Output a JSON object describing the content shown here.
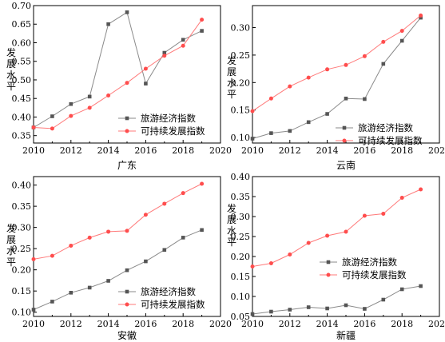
{
  "chart_data": [
    {
      "type": "line",
      "xlabel": "广东",
      "ylabel": "发展水平",
      "xlim": [
        2010,
        2020
      ],
      "ylim": [
        0.33,
        0.7
      ],
      "xticks": [
        "2010",
        "2012",
        "2014",
        "2016",
        "2018",
        "2020"
      ],
      "yticks": [
        "0.35",
        "0.40",
        "0.45",
        "0.50",
        "0.55",
        "0.60",
        "0.65",
        "0.70"
      ],
      "legend_position": "bottom-right",
      "x": [
        2010,
        2011,
        2012,
        2013,
        2014,
        2015,
        2016,
        2017,
        2018,
        2019
      ],
      "series": [
        {
          "name": "旅游经济指数",
          "color": "#555555",
          "marker": "square",
          "values": [
            0.372,
            0.402,
            0.435,
            0.455,
            0.65,
            0.682,
            0.49,
            0.573,
            0.608,
            0.632
          ]
        },
        {
          "name": "可持续发展指数",
          "color": "#ff4d4d",
          "marker": "circle",
          "values": [
            0.372,
            0.369,
            0.403,
            0.425,
            0.458,
            0.492,
            0.53,
            0.565,
            0.592,
            0.662
          ]
        }
      ]
    },
    {
      "type": "line",
      "xlabel": "云南",
      "ylabel": "发展水平",
      "xlim": [
        2010,
        2020
      ],
      "ylim": [
        0.09,
        0.34
      ],
      "xticks": [
        "2010",
        "2012",
        "2014",
        "2016",
        "2018",
        "2020"
      ],
      "yticks": [
        "0.10",
        "0.15",
        "0.20",
        "0.25",
        "0.30"
      ],
      "legend_position": "bottom-right",
      "x": [
        2010,
        2011,
        2012,
        2013,
        2014,
        2015,
        2016,
        2017,
        2018,
        2019
      ],
      "series": [
        {
          "name": "旅游经济指数",
          "color": "#555555",
          "marker": "square",
          "values": [
            0.098,
            0.108,
            0.112,
            0.128,
            0.143,
            0.171,
            0.17,
            0.234,
            0.276,
            0.318
          ]
        },
        {
          "name": "可持续发展指数",
          "color": "#ff4d4d",
          "marker": "circle",
          "values": [
            0.148,
            0.171,
            0.193,
            0.209,
            0.224,
            0.232,
            0.248,
            0.274,
            0.294,
            0.322
          ]
        }
      ]
    },
    {
      "type": "line",
      "xlabel": "安徽",
      "ylabel": "发展水平",
      "xlim": [
        2010,
        2020
      ],
      "ylim": [
        0.09,
        0.42
      ],
      "xticks": [
        "2010",
        "2012",
        "2014",
        "2016",
        "2018",
        "2020"
      ],
      "yticks": [
        "0.10",
        "0.15",
        "0.20",
        "0.25",
        "0.30",
        "0.35",
        "0.40"
      ],
      "legend_position": "bottom-right",
      "x": [
        2010,
        2011,
        2012,
        2013,
        2014,
        2015,
        2016,
        2017,
        2018,
        2019
      ],
      "series": [
        {
          "name": "旅游经济指数",
          "color": "#555555",
          "marker": "square",
          "values": [
            0.106,
            0.125,
            0.146,
            0.158,
            0.174,
            0.199,
            0.22,
            0.247,
            0.276,
            0.294
          ]
        },
        {
          "name": "可持续发展指数",
          "color": "#ff4d4d",
          "marker": "circle",
          "values": [
            0.225,
            0.233,
            0.257,
            0.276,
            0.29,
            0.292,
            0.33,
            0.356,
            0.381,
            0.403
          ]
        }
      ]
    },
    {
      "type": "line",
      "xlabel": "新疆",
      "ylabel": "发展水平",
      "xlim": [
        2010,
        2020
      ],
      "ylim": [
        0.05,
        0.4
      ],
      "xticks": [
        "2010",
        "2012",
        "2014",
        "2016",
        "2018",
        "2020"
      ],
      "yticks": [
        "0.05",
        "0.10",
        "0.15",
        "0.20",
        "0.25",
        "0.30",
        "0.35",
        "0.40"
      ],
      "legend_position": "center-right",
      "x": [
        2010,
        2011,
        2012,
        2013,
        2014,
        2015,
        2016,
        2017,
        2018,
        2019
      ],
      "series": [
        {
          "name": "旅游经济指数",
          "color": "#555555",
          "marker": "square",
          "values": [
            0.056,
            0.062,
            0.067,
            0.073,
            0.07,
            0.078,
            0.069,
            0.092,
            0.118,
            0.126
          ]
        },
        {
          "name": "可持续发展指数",
          "color": "#ff4d4d",
          "marker": "circle",
          "values": [
            0.175,
            0.183,
            0.205,
            0.234,
            0.252,
            0.262,
            0.302,
            0.307,
            0.347,
            0.368
          ]
        }
      ]
    }
  ]
}
